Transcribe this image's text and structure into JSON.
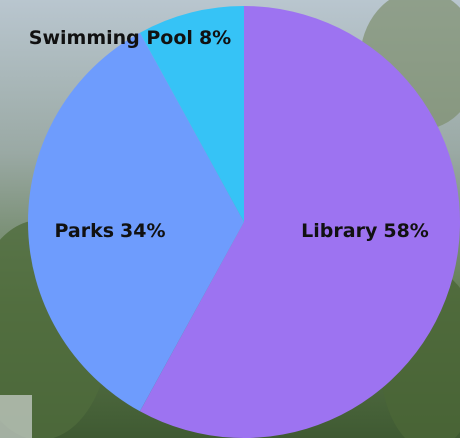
{
  "chart_data": {
    "type": "pie",
    "categories": [
      "Library",
      "Parks",
      "Swimming Pool"
    ],
    "values": [
      58,
      34,
      8
    ],
    "value_labels": [
      "58%",
      "34%",
      "8%"
    ],
    "colors": [
      "#9d73f1",
      "#6e9cfd",
      "#36c3f6"
    ]
  }
}
